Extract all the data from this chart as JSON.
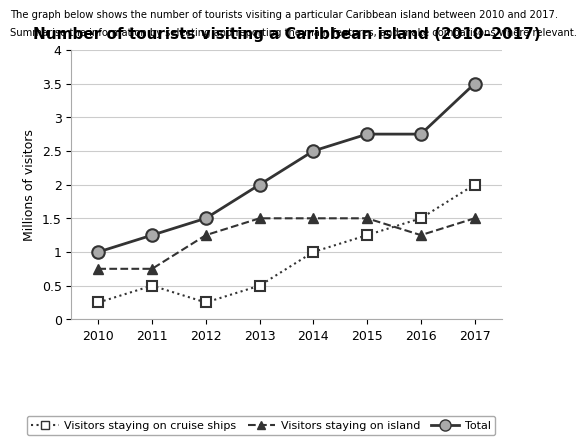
{
  "title": "Number of tourists visiting a Caribbean island (2010–2017)",
  "header_line1": "The graph below shows the number of tourists visiting a particular Caribbean island between 2010 and 2017.",
  "header_line2": "Summarise the information by selecting and reporting the main features, and make comparisons where relevant.",
  "ylabel": "Millions of visitors",
  "years": [
    2010,
    2011,
    2012,
    2013,
    2014,
    2015,
    2016,
    2017
  ],
  "cruise_ships": [
    0.25,
    0.5,
    0.25,
    0.5,
    1.0,
    1.25,
    1.5,
    2.0
  ],
  "on_island": [
    0.75,
    0.75,
    1.25,
    1.5,
    1.5,
    1.5,
    1.25,
    1.5
  ],
  "total": [
    1.0,
    1.25,
    1.5,
    2.0,
    2.5,
    2.75,
    2.75,
    3.5
  ],
  "ylim": [
    0,
    4
  ],
  "yticks": [
    0,
    0.5,
    1.0,
    1.5,
    2.0,
    2.5,
    3.0,
    3.5,
    4.0
  ],
  "background_color": "#ffffff",
  "grid_color": "#cccccc",
  "line_color": "#333333",
  "cruise_marker": "s",
  "island_marker": "^",
  "total_marker": "o",
  "cruise_linestyle": "dotted",
  "island_linestyle": "dashed",
  "total_linestyle": "solid",
  "marker_size": 7,
  "total_marker_size": 9,
  "legend_cruise": "Visitors staying on cruise ships",
  "legend_island": "Visitors staying on island",
  "legend_total": "Total"
}
